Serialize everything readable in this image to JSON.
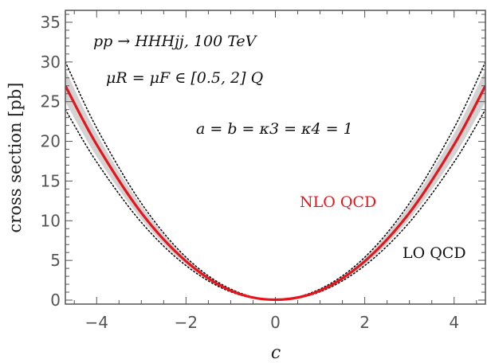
{
  "chart_data": {
    "type": "line",
    "xlabel": "c",
    "ylabel": "cross section [pb]",
    "xlim": [
      -4.7,
      4.7
    ],
    "ylim": [
      -0.5,
      36.5
    ],
    "xticks": [
      -4,
      -2,
      0,
      2,
      4
    ],
    "xtick_labels": [
      "−4",
      "−2",
      "0",
      "2",
      "4"
    ],
    "yticks": [
      0,
      5,
      10,
      15,
      20,
      25,
      30,
      35
    ],
    "ytick_labels": [
      "0",
      "5",
      "10",
      "15",
      "20",
      "25",
      "30",
      "35"
    ],
    "annotations": {
      "process": "pp → HHHjj, 100 TeV",
      "scale": "μR = μF ∈ [0.5, 2] Q",
      "couplings": "a = b = κ3 = κ4 = 1"
    },
    "series": [
      {
        "name": "NLO QCD",
        "color": "#e8141b",
        "style": "solid",
        "x": [
          -4.7,
          -4.0,
          -3.0,
          -2.0,
          -1.0,
          0.0,
          1.0,
          2.0,
          3.0,
          4.0,
          4.7
        ],
        "values": [
          27.0,
          19.6,
          11.0,
          4.9,
          1.2,
          0.05,
          1.2,
          4.9,
          11.0,
          19.6,
          27.0
        ],
        "band": {
          "upper": [
            29.0,
            21.0,
            11.9,
            5.3,
            1.35,
            0.06,
            1.35,
            5.3,
            11.9,
            21.0,
            29.0
          ],
          "lower": [
            25.0,
            18.1,
            10.2,
            4.5,
            1.1,
            0.04,
            1.1,
            4.5,
            10.2,
            18.1,
            25.0
          ],
          "color": "#d3d3d3"
        }
      },
      {
        "name": "LO QCD",
        "color": "#111111",
        "style": "dotted",
        "x": [
          -4.7,
          -4.0,
          -3.0,
          -2.0,
          -1.0,
          0.0,
          1.0,
          2.0,
          3.0,
          4.0,
          4.7
        ],
        "upper": [
          30.0,
          21.7,
          12.2,
          5.4,
          1.4,
          0.06,
          1.4,
          5.4,
          12.2,
          21.7,
          30.0
        ],
        "lower": [
          24.0,
          17.4,
          9.8,
          4.35,
          1.05,
          0.04,
          1.05,
          4.35,
          9.8,
          17.4,
          24.0
        ]
      }
    ]
  }
}
